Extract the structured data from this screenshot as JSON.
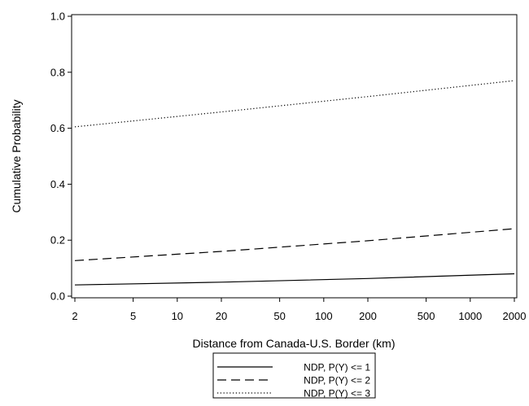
{
  "chart_data": {
    "type": "line",
    "xlabel": "Distance from Canada-U.S. Border (km)",
    "ylabel": "Cumulative Probability",
    "x_scale": "log",
    "xlim": [
      2,
      2000
    ],
    "ylim": [
      0.0,
      1.0
    ],
    "x_ticks": [
      2,
      5,
      10,
      20,
      50,
      100,
      200,
      500,
      1000,
      2000
    ],
    "x_tick_labels": [
      "2",
      "5",
      "10",
      "20",
      "50",
      "100",
      "200",
      "500",
      "1000",
      "2000"
    ],
    "y_ticks": [
      0.0,
      0.2,
      0.4,
      0.6,
      0.8,
      1.0
    ],
    "y_tick_labels": [
      "0.0",
      "0.2",
      "0.4",
      "0.6",
      "0.8",
      "1.0"
    ],
    "grid": false,
    "legend_position": "bottom",
    "series": [
      {
        "name": "NDP, P(Y) <= 1",
        "style": "solid",
        "color": "#000000",
        "x": [
          2,
          20,
          200,
          2000
        ],
        "y": [
          0.04,
          0.05,
          0.063,
          0.08
        ]
      },
      {
        "name": "NDP, P(Y) <= 2",
        "style": "dashed",
        "color": "#000000",
        "x": [
          2,
          20,
          200,
          2000
        ],
        "y": [
          0.127,
          0.16,
          0.198,
          0.241
        ]
      },
      {
        "name": "NDP, P(Y) <= 3",
        "style": "dotted",
        "color": "#000000",
        "x": [
          2,
          20,
          200,
          2000
        ],
        "y": [
          0.605,
          0.658,
          0.713,
          0.77
        ]
      }
    ]
  }
}
